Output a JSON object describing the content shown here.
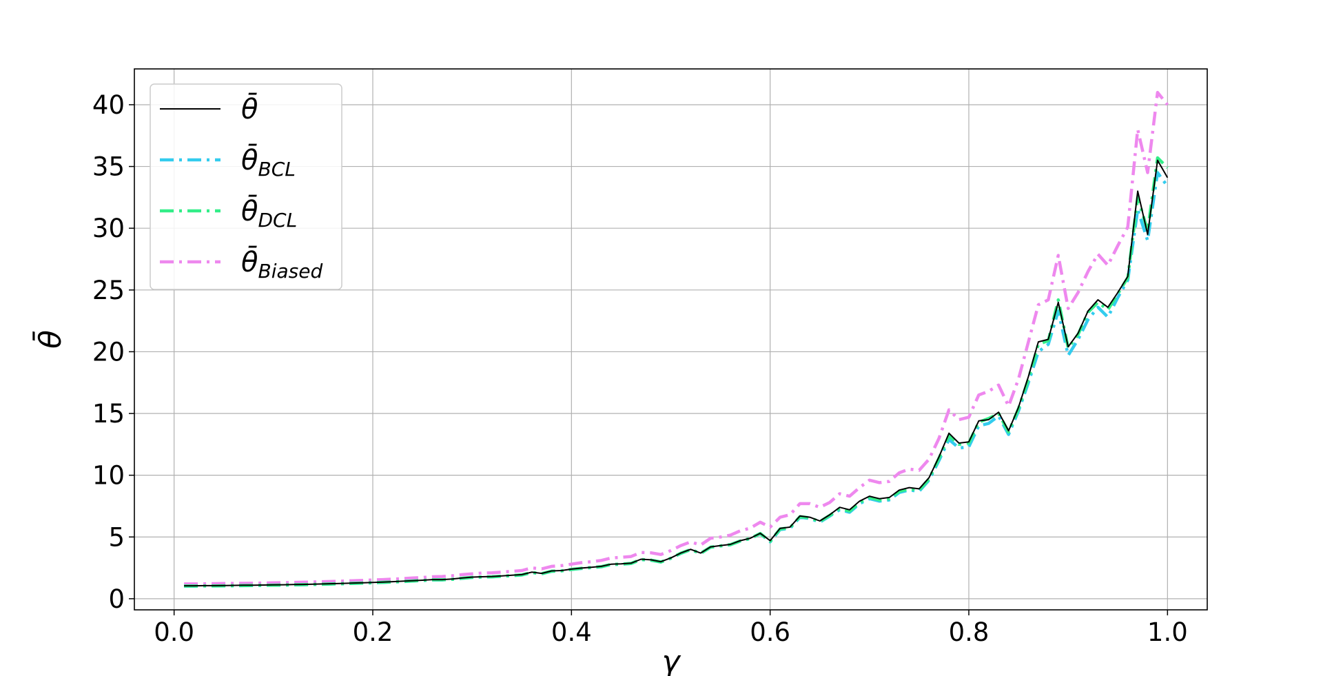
{
  "chart_data": {
    "type": "line",
    "xlabel": "γ",
    "ylabel": "θ̄",
    "xlim": [
      -0.04,
      1.04
    ],
    "ylim": [
      -0.9,
      42.9
    ],
    "xticks": [
      0.0,
      0.2,
      0.4,
      0.6,
      0.8,
      1.0
    ],
    "xtick_labels": [
      "0.0",
      "0.2",
      "0.4",
      "0.6",
      "0.8",
      "1.0"
    ],
    "yticks": [
      0,
      5,
      10,
      15,
      20,
      25,
      30,
      35,
      40
    ],
    "ytick_labels": [
      "0",
      "5",
      "10",
      "15",
      "20",
      "25",
      "30",
      "35",
      "40"
    ],
    "grid": true,
    "legend_position": "top-left",
    "x": [
      0.01,
      0.02,
      0.03,
      0.04,
      0.05,
      0.06,
      0.07,
      0.08,
      0.09,
      0.1,
      0.11,
      0.12,
      0.13,
      0.14,
      0.15,
      0.16,
      0.17,
      0.18,
      0.19,
      0.2,
      0.21,
      0.22,
      0.23,
      0.24,
      0.25,
      0.26,
      0.27,
      0.28,
      0.29,
      0.3,
      0.31,
      0.32,
      0.33,
      0.34,
      0.35,
      0.36,
      0.37,
      0.38,
      0.39,
      0.4,
      0.41,
      0.42,
      0.43,
      0.44,
      0.45,
      0.46,
      0.47,
      0.48,
      0.49,
      0.5,
      0.51,
      0.52,
      0.53,
      0.54,
      0.55,
      0.56,
      0.57,
      0.58,
      0.59,
      0.6,
      0.61,
      0.62,
      0.63,
      0.64,
      0.65,
      0.66,
      0.67,
      0.68,
      0.69,
      0.7,
      0.71,
      0.72,
      0.73,
      0.74,
      0.75,
      0.76,
      0.77,
      0.78,
      0.79,
      0.8,
      0.81,
      0.82,
      0.83,
      0.84,
      0.85,
      0.86,
      0.87,
      0.88,
      0.89,
      0.9,
      0.91,
      0.92,
      0.93,
      0.94,
      0.95,
      0.96,
      0.97,
      0.98,
      0.99,
      1.0
    ],
    "series": [
      {
        "name": "θ̄",
        "legend_main": "θ̄",
        "legend_sub": "",
        "color": "#000000",
        "style": "solid",
        "values": [
          1.05,
          1.05,
          1.06,
          1.06,
          1.07,
          1.08,
          1.09,
          1.1,
          1.11,
          1.12,
          1.13,
          1.15,
          1.16,
          1.18,
          1.2,
          1.22,
          1.24,
          1.27,
          1.29,
          1.32,
          1.35,
          1.38,
          1.42,
          1.46,
          1.5,
          1.55,
          1.55,
          1.6,
          1.68,
          1.75,
          1.78,
          1.8,
          1.85,
          1.9,
          1.95,
          2.15,
          2.05,
          2.25,
          2.28,
          2.4,
          2.48,
          2.55,
          2.62,
          2.8,
          2.82,
          2.88,
          3.2,
          3.15,
          3.0,
          3.3,
          3.7,
          4.0,
          3.7,
          4.2,
          4.3,
          4.4,
          4.7,
          4.9,
          5.3,
          4.7,
          5.7,
          5.8,
          6.7,
          6.6,
          6.3,
          6.8,
          7.4,
          7.2,
          7.9,
          8.3,
          8.1,
          8.2,
          8.8,
          9.0,
          8.9,
          9.8,
          11.5,
          13.4,
          12.6,
          12.7,
          14.4,
          14.5,
          15.1,
          13.6,
          15.5,
          18.0,
          20.8,
          21.0,
          24.0,
          20.4,
          21.5,
          23.3,
          24.2,
          23.6,
          24.8,
          26.1,
          33.0,
          29.5,
          35.5,
          34.1
        ]
      },
      {
        "name": "θ̄BCL",
        "legend_main": "θ̄",
        "legend_sub": "BCL",
        "color": "#33ccee",
        "style": "dashdot",
        "values": [
          1.02,
          1.02,
          1.03,
          1.03,
          1.04,
          1.05,
          1.06,
          1.07,
          1.08,
          1.09,
          1.1,
          1.12,
          1.13,
          1.15,
          1.17,
          1.19,
          1.21,
          1.24,
          1.26,
          1.29,
          1.32,
          1.35,
          1.39,
          1.43,
          1.47,
          1.52,
          1.52,
          1.57,
          1.65,
          1.72,
          1.75,
          1.77,
          1.82,
          1.87,
          1.92,
          2.12,
          2.02,
          2.22,
          2.25,
          2.37,
          2.45,
          2.52,
          2.59,
          2.77,
          2.79,
          2.85,
          3.17,
          3.12,
          2.97,
          3.27,
          3.67,
          3.97,
          3.67,
          4.17,
          4.27,
          4.37,
          4.67,
          4.87,
          5.27,
          4.6,
          5.6,
          5.7,
          6.6,
          6.5,
          6.2,
          6.7,
          7.2,
          7.0,
          7.7,
          8.1,
          7.9,
          8.0,
          8.6,
          8.8,
          8.7,
          9.6,
          11.2,
          12.9,
          12.2,
          12.3,
          14.0,
          14.2,
          14.8,
          13.3,
          15.2,
          17.5,
          20.0,
          20.6,
          23.3,
          19.7,
          21.0,
          22.6,
          23.6,
          22.8,
          24.4,
          25.8,
          31.5,
          29.0,
          34.5,
          33.4
        ]
      },
      {
        "name": "θ̄DCL",
        "legend_main": "θ̄",
        "legend_sub": "DCL",
        "color": "#33ee88",
        "style": "dashdot",
        "values": [
          1.03,
          1.03,
          1.04,
          1.04,
          1.05,
          1.06,
          1.07,
          1.08,
          1.09,
          1.1,
          1.11,
          1.13,
          1.14,
          1.16,
          1.18,
          1.2,
          1.22,
          1.25,
          1.27,
          1.3,
          1.33,
          1.36,
          1.4,
          1.44,
          1.48,
          1.53,
          1.53,
          1.58,
          1.66,
          1.73,
          1.76,
          1.78,
          1.83,
          1.88,
          1.93,
          2.13,
          2.03,
          2.23,
          2.26,
          2.38,
          2.46,
          2.53,
          2.6,
          2.78,
          2.8,
          2.86,
          3.18,
          3.13,
          2.98,
          3.28,
          3.68,
          3.98,
          3.68,
          4.18,
          4.28,
          4.38,
          4.68,
          4.88,
          5.28,
          4.65,
          5.65,
          5.75,
          6.65,
          6.55,
          6.25,
          6.75,
          7.3,
          7.1,
          7.8,
          8.2,
          8.0,
          8.1,
          8.7,
          8.9,
          8.8,
          9.7,
          11.4,
          13.2,
          12.5,
          12.6,
          14.3,
          14.6,
          15.0,
          13.5,
          15.4,
          17.8,
          20.6,
          20.9,
          24.2,
          20.3,
          21.4,
          23.2,
          24.0,
          23.4,
          24.7,
          26.0,
          32.5,
          29.8,
          35.7,
          34.9
        ]
      },
      {
        "name": "θ̄Biased",
        "legend_main": "θ̄",
        "legend_sub": "Biased",
        "color": "#ee88ee",
        "style": "dashdot",
        "values": [
          1.2,
          1.2,
          1.21,
          1.22,
          1.23,
          1.24,
          1.25,
          1.26,
          1.27,
          1.29,
          1.3,
          1.32,
          1.34,
          1.36,
          1.38,
          1.4,
          1.43,
          1.46,
          1.48,
          1.52,
          1.55,
          1.59,
          1.63,
          1.68,
          1.72,
          1.78,
          1.8,
          1.86,
          1.95,
          2.02,
          2.08,
          2.1,
          2.16,
          2.22,
          2.28,
          2.5,
          2.42,
          2.62,
          2.68,
          2.8,
          2.92,
          3.0,
          3.1,
          3.3,
          3.35,
          3.42,
          3.75,
          3.72,
          3.58,
          3.9,
          4.3,
          4.6,
          4.35,
          4.9,
          5.0,
          5.15,
          5.5,
          5.72,
          6.2,
          5.8,
          6.6,
          6.8,
          7.7,
          7.7,
          7.4,
          7.8,
          8.5,
          8.3,
          9.0,
          9.6,
          9.4,
          9.5,
          10.2,
          10.5,
          10.4,
          11.3,
          13.0,
          15.3,
          14.5,
          14.7,
          16.5,
          16.8,
          17.3,
          15.6,
          17.8,
          20.8,
          23.8,
          24.2,
          27.8,
          23.5,
          24.8,
          26.5,
          27.9,
          27.0,
          28.6,
          30.1,
          38.0,
          34.5,
          41.0,
          40.0
        ]
      }
    ]
  }
}
